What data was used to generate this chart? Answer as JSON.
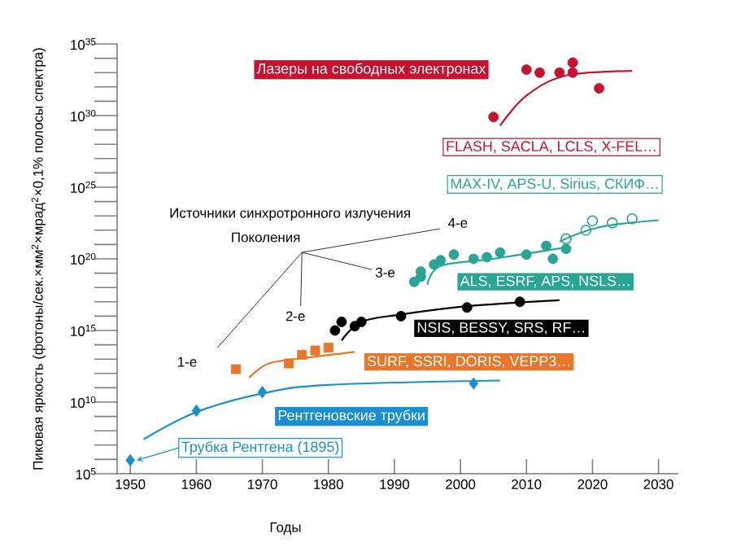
{
  "chart_data": {
    "type": "scatter",
    "xlabel": "Годы",
    "ylabel": "Пиковая яркость (фотоны/сек.×мм$^{2}$×мрад$^{2}$×0,1% полосы спектра)",
    "xlim": [
      1948,
      2033
    ],
    "xticks": [
      1950,
      1960,
      1970,
      1980,
      1990,
      2000,
      2010,
      2020,
      2030
    ],
    "ylim": [
      100000.0,
      1e+35
    ],
    "log": "y",
    "yticks": [
      {
        "value": 100000.0,
        "label": "10$^{5}$"
      },
      {
        "value": 1000000.0,
        "label": null
      },
      {
        "value": 10000000.0,
        "label": null
      },
      {
        "value": 100000000.0,
        "label": null
      },
      {
        "value": 1000000000.0,
        "label": null
      },
      {
        "value": 10000000000.0,
        "label": "10$^{10}$"
      },
      {
        "value": 100000000000.0,
        "label": null
      },
      {
        "value": 1000000000000.0,
        "label": null
      },
      {
        "value": 10000000000000.0,
        "label": null
      },
      {
        "value": 100000000000000.0,
        "label": null
      },
      {
        "value": 1000000000000000.0,
        "label": "10$^{15}$"
      },
      {
        "value": 1e+16,
        "label": null
      },
      {
        "value": 1e+17,
        "label": null
      },
      {
        "value": 1e+18,
        "label": null
      },
      {
        "value": 1e+19,
        "label": null
      },
      {
        "value": 1e+20,
        "label": "10$^{20}$"
      },
      {
        "value": 1e+21,
        "label": null
      },
      {
        "value": 1e+22,
        "label": null
      },
      {
        "value": 1e+23,
        "label": null
      },
      {
        "value": 1e+24,
        "label": null
      },
      {
        "value": 1e+25,
        "label": "10$^{25}$"
      },
      {
        "value": 1e+26,
        "label": null
      },
      {
        "value": 1e+27,
        "label": null
      },
      {
        "value": 1e+28,
        "label": null
      },
      {
        "value": 1e+29,
        "label": null
      },
      {
        "value": 1e+30,
        "label": "10$^{30}$"
      },
      {
        "value": 1e+31,
        "label": null
      },
      {
        "value": 1e+32,
        "label": null
      },
      {
        "value": 1e+33,
        "label": null
      },
      {
        "value": 1e+34,
        "label": null
      },
      {
        "value": 1e+35,
        "label": "10$^{35}$"
      }
    ],
    "grid": false,
    "series": [
      {
        "name": "Рентгеновские трубки",
        "marker": "diamond",
        "color": "#1a8fd0",
        "x": [
          1950,
          1960,
          1970,
          2002
        ],
        "values": [
          870000.0,
          2500000000.0,
          50000000000.0,
          200000000000.0
        ]
      },
      {
        "type": "line",
        "marker": "none",
        "color": "#1a8fd0",
        "x": [
          1952,
          1960,
          1970,
          1980,
          2006
        ],
        "values": [
          25000000.0,
          2000000000.0,
          40000000000.0,
          160000000000.0,
          320000000000.0
        ]
      },
      {
        "name": "SURF, SSRI, DORIS, VEPP3…",
        "marker": "square",
        "color": "#e8762c",
        "x": [
          1966,
          1974,
          1976,
          1978,
          1980
        ],
        "values": [
          2000000000000.0,
          5000000000000.0,
          20000000000000.0,
          40000000000000.0,
          63000000000000.0
        ]
      },
      {
        "type": "line",
        "marker": "none",
        "color": "#e8762c",
        "x": [
          1968,
          1971,
          1977,
          1984
        ],
        "values": [
          500000000000.0,
          5000000000000.0,
          13000000000000.0,
          32000000000000.0
        ]
      },
      {
        "name": "NSIS, BESSY, SRS, RF…",
        "marker": "circle",
        "color": "#000000",
        "x": [
          1981,
          1982,
          1984,
          1985,
          1991,
          2001,
          2009
        ],
        "values": [
          1000000000000000.0,
          4000000000000000.0,
          2000000000000000.0,
          4000000000000000.0,
          1e+16,
          4e+16,
          1e+17
        ]
      },
      {
        "type": "line",
        "marker": "none",
        "color": "#000000",
        "x": [
          1982,
          1985,
          1991,
          2001,
          2015
        ],
        "values": [
          200000000000000.0,
          4000000000000000.0,
          1.3e+16,
          5e+16,
          1.3e+17
        ]
      },
      {
        "name": "ALS, ESRF, APS, NSLS…",
        "marker": "circle",
        "color": "#2aa594",
        "x": [
          1993,
          1994,
          1994,
          1996,
          1997,
          1999,
          2002,
          2004,
          2006,
          2010,
          2013,
          2014,
          2016
        ],
        "values": [
          2.5e+18,
          5.6e+18,
          1.3e+19,
          4e+19,
          8e+19,
          2e+20,
          1e+20,
          1.3e+20,
          2.8e+20,
          2e+20,
          8e+20,
          1e+20,
          5e+20
        ]
      },
      {
        "type": "line",
        "marker": "none",
        "color": "#2aa594",
        "x": [
          1995,
          1997,
          2005,
          2016
        ],
        "values": [
          1.6e+18,
          3.2e+19,
          1e+20,
          6.3e+20
        ]
      },
      {
        "name": "MAX-IV, APS-U, Sirius, СКИФ…",
        "marker": "circle",
        "color": "#2aa594",
        "x": [
          2016,
          2019,
          2020,
          2023,
          2026
        ],
        "values": [
          2.5e+21,
          1e+22,
          4.5e+22,
          3.2e+22,
          6.3e+22
        ]
      },
      {
        "type": "line",
        "marker": "none",
        "color": "#2aa594",
        "x": [
          2015,
          2021,
          2030
        ],
        "values": [
          1.6e+21,
          1.6e+22,
          5e+22
        ]
      },
      {
        "name": "Лазеры на свободных электронах",
        "marker": "circle",
        "color": "#c41230",
        "x": [
          2005,
          2010,
          2012,
          2015,
          2017,
          2017,
          2021
        ],
        "values": [
          8e+29,
          1.6e+33,
          1e+33,
          1e+33,
          5e+33,
          1e+33,
          8e+31
        ]
      },
      {
        "type": "line",
        "marker": "none",
        "color": "#c41230",
        "x": [
          2006,
          2010,
          2016,
          2026
        ],
        "values": [
          2e+29,
          2.5e+31,
          6.3e+32,
          1.3e+33
        ]
      }
    ],
    "annotations": [
      "FLASH, SACLA, LCLS, X-FEL…",
      {
        "text": "Трубка Рентгена (1895)",
        "x": 1950,
        "y": 870000.0
      },
      "Источники синхротронного излучения",
      "Поколения",
      "1-е",
      "2-е",
      "3-е",
      "4-е"
    ]
  }
}
